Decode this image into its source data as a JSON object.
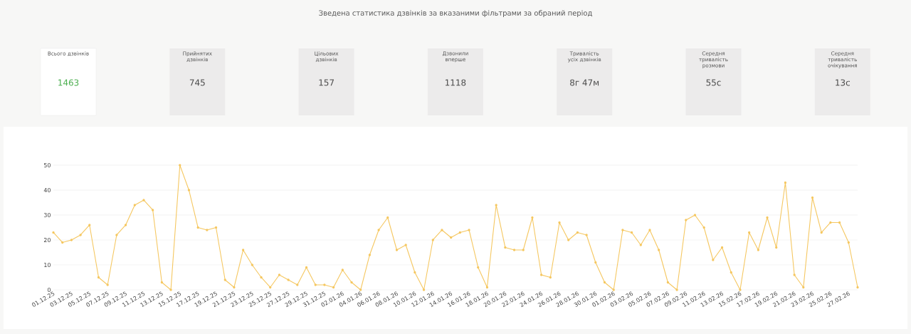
{
  "chart_data": [
    {
      "type": "other",
      "title": "Зведена статистика дзвінків за вказаними фільтрами за обраний період",
      "annotations": [
        "Всього дзвінків",
        "1463",
        "Прийнятих дзвінків",
        "745",
        "Цільових дзвінків",
        "157",
        "Дзвонили вперше",
        "1118",
        "Тривалість усіх дзвінків",
        "8г 47м",
        "Середня тривалість розмови",
        "55с",
        "Середня тривалість очікування",
        "13с"
      ]
    },
    {
      "type": "line",
      "color": "#f5c760",
      "marker": "circle",
      "grid": "y",
      "categories": [
        "01.12.25",
        null,
        "03.12.25",
        null,
        "05.12.25",
        null,
        "07.12.25",
        null,
        "09.12.25",
        null,
        "11.12.25",
        null,
        "13.12.25",
        null,
        "15.12.25",
        null,
        "17.12.25",
        null,
        "19.12.25",
        null,
        "21.12.25",
        null,
        "23.12.25",
        null,
        "25.12.25",
        null,
        "27.12.25",
        null,
        "29.12.25",
        null,
        "31.12.25",
        null,
        "02.01.26",
        null,
        "04.01.26",
        null,
        "06.01.26",
        null,
        "08.01.26",
        null,
        "10.01.26",
        null,
        "12.01.26",
        null,
        "14.01.26",
        null,
        "16.01.26",
        null,
        "18.01.26",
        null,
        "20.01.26",
        null,
        "22.01.26",
        null,
        "24.01.26",
        null,
        "26.01.26",
        null,
        "28.01.26",
        null,
        "30.01.26",
        null,
        "01.02.26",
        null,
        "03.02.26",
        null,
        "05.02.26",
        null,
        "07.02.26",
        null,
        "09.02.26",
        null,
        "11.02.26",
        null,
        "13.02.26",
        null,
        "15.02.26",
        null,
        "17.02.26",
        null,
        "19.02.26",
        null,
        "21.02.26",
        null,
        "23.02.26",
        null,
        "25.02.26",
        null,
        "27.02.26",
        null
      ],
      "values": [
        23,
        19,
        20,
        22,
        26,
        5,
        2,
        22,
        26,
        34,
        36,
        32,
        3,
        0,
        50,
        40,
        25,
        24,
        25,
        4,
        1,
        16,
        10,
        5,
        1,
        6,
        4,
        2,
        9,
        2,
        2,
        1,
        8,
        3,
        0,
        14,
        24,
        29,
        16,
        18,
        7,
        0,
        20,
        24,
        21,
        23,
        24,
        9,
        1,
        34,
        17,
        16,
        16,
        29,
        6,
        5,
        27,
        20,
        23,
        22,
        11,
        3,
        0,
        24,
        23,
        18,
        24,
        16,
        3,
        0,
        28,
        30,
        25,
        12,
        17,
        7,
        0,
        23,
        16,
        29,
        17,
        43,
        6,
        1,
        37,
        23,
        27,
        27,
        19,
        1
      ],
      "ylim": [
        0,
        50
      ],
      "yticks": [
        0,
        10,
        20,
        30,
        40,
        50
      ]
    }
  ]
}
